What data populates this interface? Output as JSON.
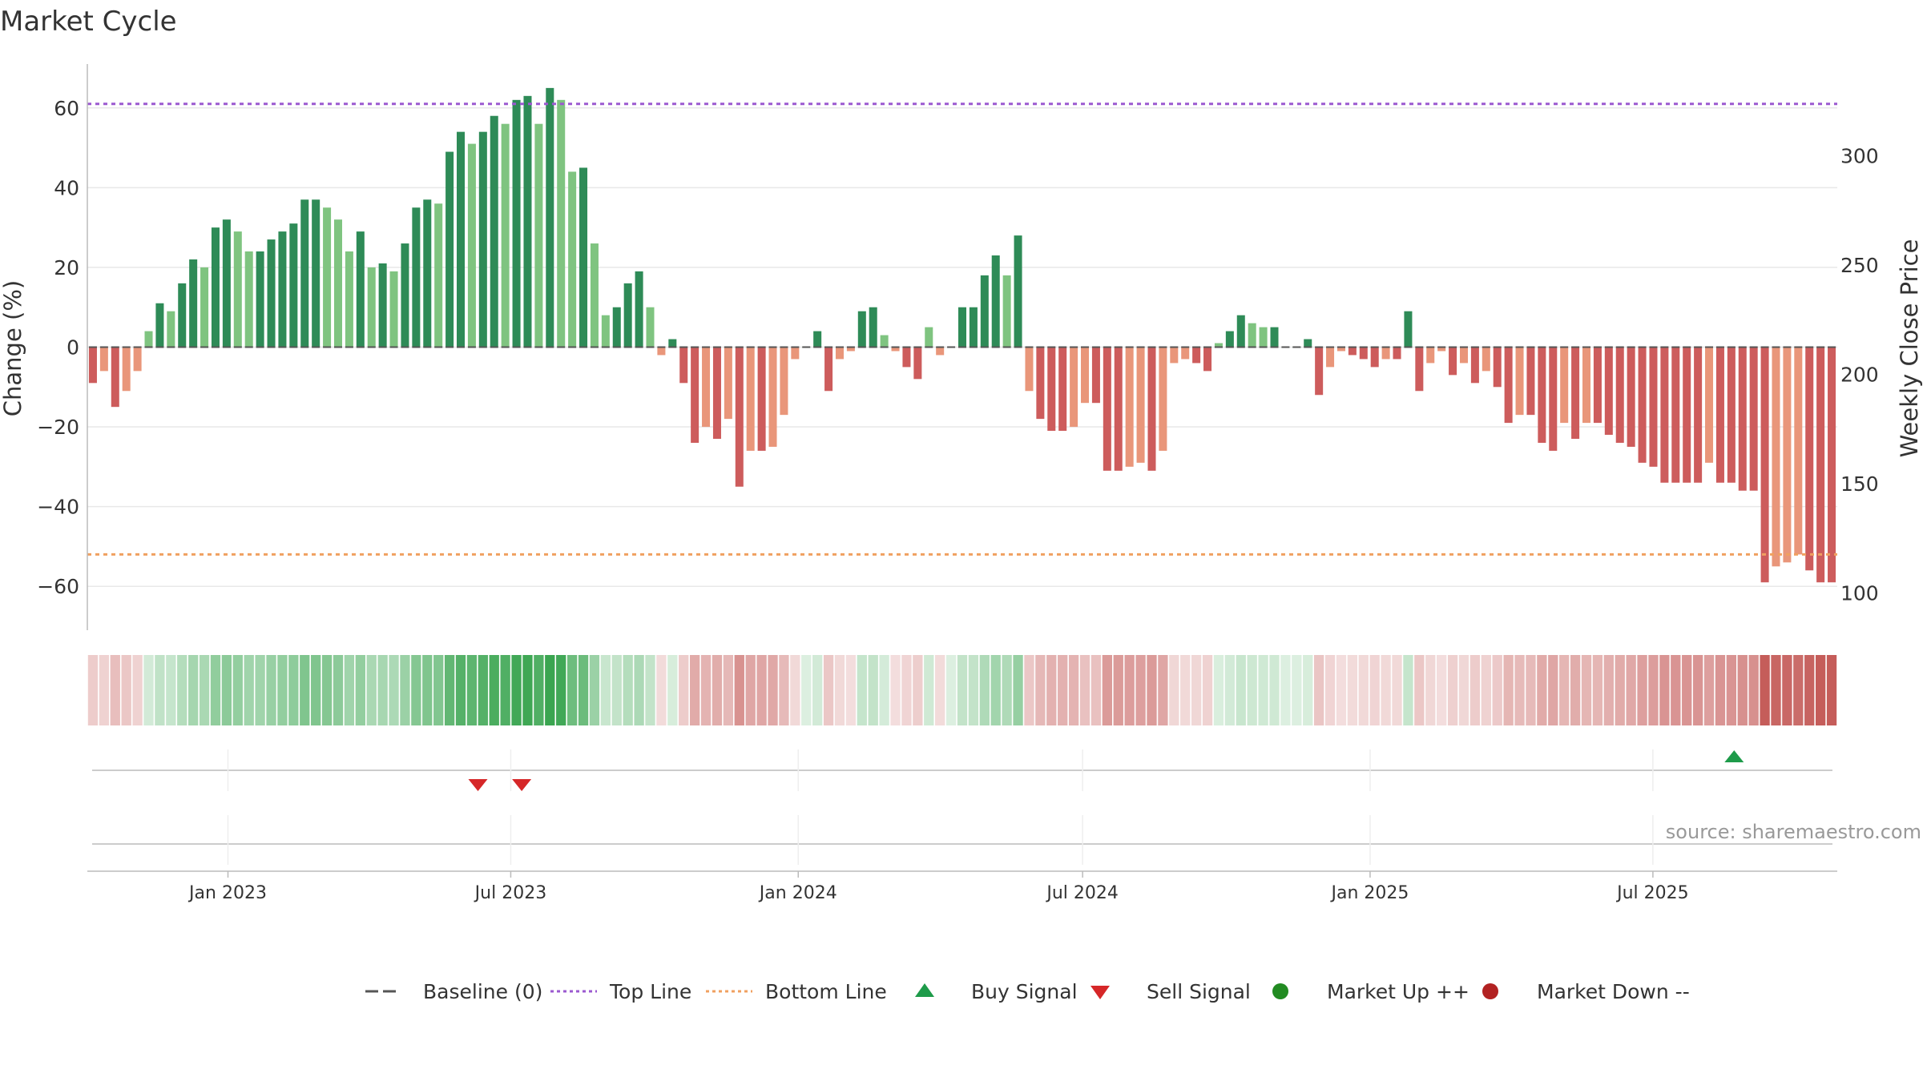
{
  "chart_data": {
    "type": "bar",
    "title": "Market Cycle",
    "ylabel": "Change (%)",
    "ylabel_right": "Weekly Close Price",
    "source": "source: sharemaestro.com",
    "ylim": [
      -71,
      71
    ],
    "yticks": [
      -60,
      -40,
      -20,
      0,
      20,
      40,
      60
    ],
    "ytick_labels": [
      "−60",
      "−40",
      "−20",
      "0",
      "20",
      "40",
      "60"
    ],
    "ylim_right": [
      83,
      342
    ],
    "yticks_right": [
      100,
      150,
      200,
      250,
      300
    ],
    "top_line": 61,
    "bottom_line": -52,
    "xaxis": {
      "start": "2022-10-03",
      "end": "2025-10-27",
      "ticks": [
        {
          "date": "2023-01-01",
          "label": "Jan 2023"
        },
        {
          "date": "2023-07-01",
          "label": "Jul 2023"
        },
        {
          "date": "2024-01-01",
          "label": "Jan 2024"
        },
        {
          "date": "2024-07-01",
          "label": "Jul 2024"
        },
        {
          "date": "2025-01-01",
          "label": "Jan 2025"
        },
        {
          "date": "2025-07-01",
          "label": "Jul 2025"
        }
      ]
    },
    "weeks_start": "2022-10-03",
    "values": [
      -9,
      -6,
      -15,
      -11,
      -6,
      4,
      11,
      9,
      16,
      22,
      20,
      30,
      32,
      29,
      24,
      24,
      27,
      29,
      31,
      37,
      37,
      35,
      32,
      24,
      29,
      20,
      21,
      19,
      26,
      35,
      37,
      36,
      49,
      54,
      51,
      54,
      58,
      56,
      62,
      63,
      56,
      65,
      62,
      44,
      45,
      26,
      8,
      10,
      16,
      19,
      10,
      -2,
      2,
      -9,
      -24,
      -20,
      -23,
      -18,
      -35,
      -26,
      -26,
      -25,
      -17,
      -3,
      0,
      4,
      -11,
      -3,
      -1,
      9,
      10,
      3,
      -1,
      -5,
      -8,
      5,
      -2,
      0,
      10,
      10,
      18,
      23,
      18,
      28,
      -11,
      -18,
      -21,
      -21,
      -20,
      -14,
      -14,
      -31,
      -31,
      -30,
      -29,
      -31,
      -26,
      -4,
      -3,
      -4,
      -6,
      1,
      4,
      8,
      6,
      5,
      5,
      0,
      0,
      2,
      -12,
      -5,
      -1,
      -2,
      -3,
      -5,
      -3,
      -3,
      9,
      -11,
      -4,
      -1,
      -7,
      -4,
      -9,
      -6,
      -10,
      -19,
      -17,
      -17,
      -24,
      -26,
      -19,
      -23,
      -19,
      -19,
      -22,
      -24,
      -25,
      -29,
      -30,
      -34,
      -34,
      -34,
      -34,
      -29,
      -34,
      -34,
      -36,
      -36,
      -59,
      -55,
      -54,
      -52,
      -56,
      -59,
      -59
    ],
    "signals": [
      {
        "type": "sell",
        "date": "2023-06-10"
      },
      {
        "type": "sell",
        "date": "2023-07-08"
      },
      {
        "type": "buy",
        "date": "2025-08-22"
      }
    ],
    "legend": {
      "position": "bottom",
      "items": [
        {
          "label": "Baseline (0)",
          "marker": "dash",
          "color": "#555555"
        },
        {
          "label": "Top Line",
          "marker": "dotted",
          "color": "#9b59d0"
        },
        {
          "label": "Bottom Line",
          "marker": "dotted",
          "color": "#f0a060"
        },
        {
          "label": "Buy Signal",
          "marker": "triangle-up",
          "color": "#1e9b4a"
        },
        {
          "label": "Sell Signal",
          "marker": "triangle-down",
          "color": "#d62728"
        },
        {
          "label": "Market Up ++",
          "marker": "circle",
          "color": "#228b22"
        },
        {
          "label": "Market Down --",
          "marker": "circle",
          "color": "#b22222"
        }
      ]
    },
    "colors": {
      "up_strong": "#2e8b57",
      "up_light": "#7fc480",
      "down_strong": "#cd5c5c",
      "down_light": "#e9967a",
      "top_line": "#9b59d0",
      "bottom_line": "#f0a060",
      "buy": "#1e9b4a",
      "sell": "#d62728"
    },
    "grid": true
  }
}
